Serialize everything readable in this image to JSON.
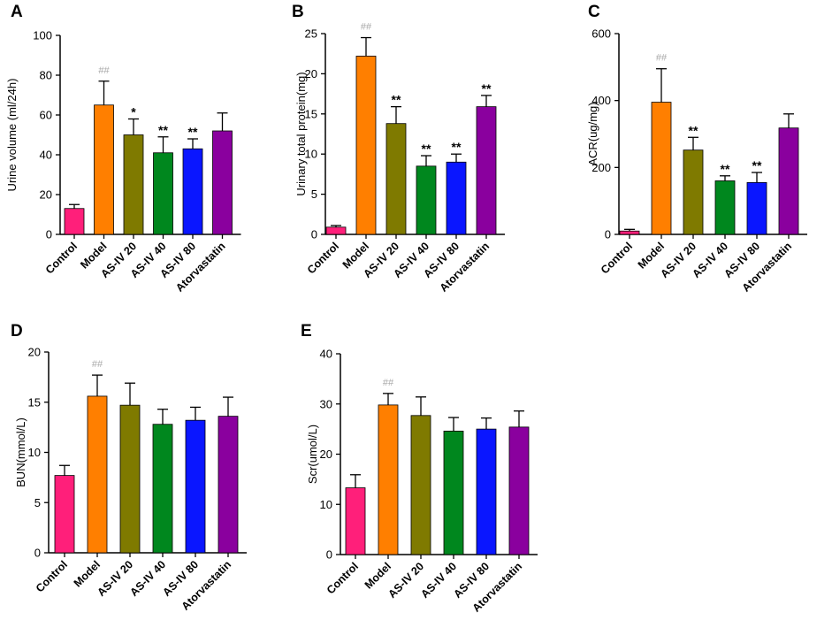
{
  "figure": {
    "background": "#ffffff"
  },
  "colors": {
    "bars": [
      "#ff1f7a",
      "#ff7f00",
      "#7f7a00",
      "#00871e",
      "#0a16ff",
      "#8a009e"
    ],
    "axis": "#000000",
    "hash_marks": "#a8a8a8"
  },
  "chart_data": [
    {
      "panel": "A",
      "type": "bar",
      "categories": [
        "Control",
        "Model",
        "AS-IV 20",
        "AS-IV 40",
        "AS-IV 80",
        "Atorvastatin"
      ],
      "values": [
        13,
        65,
        50,
        41,
        43,
        52
      ],
      "errors": [
        2,
        12,
        8,
        8,
        5,
        9
      ],
      "annotations": [
        "",
        "##",
        "*",
        "**",
        "**",
        ""
      ],
      "ylabel": "Urine volume (ml/24h)",
      "yticks": [
        0,
        20,
        40,
        60,
        80,
        100
      ],
      "ylim": [
        0,
        100
      ],
      "title": ""
    },
    {
      "panel": "B",
      "type": "bar",
      "categories": [
        "Control",
        "Model",
        "AS-IV 20",
        "AS-IV 40",
        "AS-IV 80",
        "Atorvastatin"
      ],
      "values": [
        0.9,
        22.2,
        13.8,
        8.5,
        9.0,
        15.9
      ],
      "errors": [
        0.2,
        2.3,
        2.1,
        1.3,
        1.0,
        1.4
      ],
      "annotations": [
        "",
        "##",
        "**",
        "**",
        "**",
        "**"
      ],
      "ylabel": "Urinary total protein(mg)",
      "yticks": [
        0,
        5,
        10,
        15,
        20,
        25
      ],
      "ylim": [
        0,
        25
      ],
      "title": ""
    },
    {
      "panel": "C",
      "type": "bar",
      "categories": [
        "Control",
        "Model",
        "AS-IV 20",
        "AS-IV 40",
        "AS-IV 80",
        "Atorvastatin"
      ],
      "values": [
        10,
        395,
        252,
        160,
        155,
        318
      ],
      "errors": [
        5,
        100,
        38,
        15,
        30,
        42
      ],
      "annotations": [
        "",
        "##",
        "**",
        "**",
        "**",
        ""
      ],
      "ylabel": "ACR(ug/mg)",
      "yticks": [
        0,
        200,
        400,
        600
      ],
      "ylim": [
        0,
        600
      ],
      "title": ""
    },
    {
      "panel": "D",
      "type": "bar",
      "categories": [
        "Control",
        "Model",
        "AS-IV 20",
        "AS-IV 40",
        "AS-IV 80",
        "Atorvastatin"
      ],
      "values": [
        7.7,
        15.6,
        14.7,
        12.8,
        13.2,
        13.6
      ],
      "errors": [
        1.0,
        2.1,
        2.2,
        1.5,
        1.3,
        1.9
      ],
      "annotations": [
        "",
        "##",
        "",
        "",
        "",
        ""
      ],
      "ylabel": "BUN(mmol/L)",
      "yticks": [
        0,
        5,
        10,
        15,
        20
      ],
      "ylim": [
        0,
        20
      ],
      "title": ""
    },
    {
      "panel": "E",
      "type": "bar",
      "categories": [
        "Control",
        "Model",
        "AS-IV 20",
        "AS-IV 40",
        "AS-IV 80",
        "Atorvastatin"
      ],
      "values": [
        13.3,
        29.8,
        27.7,
        24.6,
        25.0,
        25.4
      ],
      "errors": [
        2.6,
        2.3,
        3.7,
        2.7,
        2.2,
        3.2
      ],
      "annotations": [
        "",
        "##",
        "",
        "",
        "",
        ""
      ],
      "ylabel": "Scr(umol/L)",
      "yticks": [
        0,
        10,
        20,
        30,
        40
      ],
      "ylim": [
        0,
        40
      ],
      "title": ""
    }
  ]
}
